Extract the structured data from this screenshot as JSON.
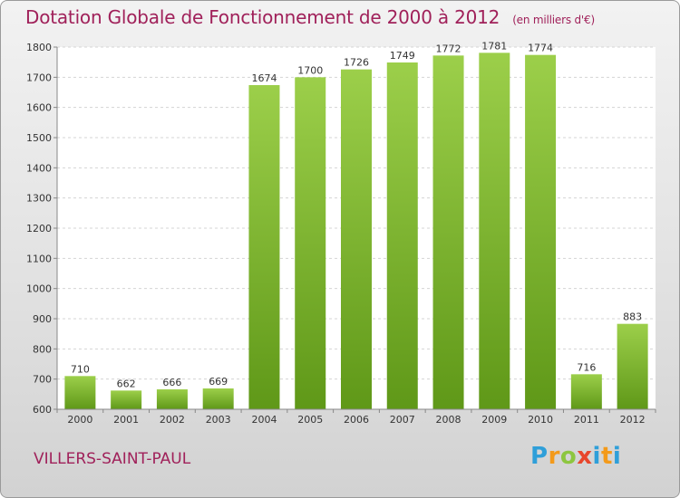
{
  "chart_data": {
    "type": "bar",
    "title": "Dotation Globale de Fonctionnement de 2000 à 2012",
    "subtitle": "(en milliers d'€)",
    "categories": [
      "2000",
      "2001",
      "2002",
      "2003",
      "2004",
      "2005",
      "2006",
      "2007",
      "2008",
      "2009",
      "2010",
      "2011",
      "2012"
    ],
    "values": [
      710,
      662,
      666,
      669,
      1674,
      1700,
      1726,
      1749,
      1772,
      1781,
      1774,
      716,
      883
    ],
    "ylim": [
      600,
      1800
    ],
    "yticks": [
      600,
      700,
      800,
      900,
      1000,
      1100,
      1200,
      1300,
      1400,
      1500,
      1600,
      1700,
      1800
    ],
    "grid": true,
    "bar_color": "#8cc63f"
  },
  "footer": {
    "place": "VILLERS-SAINT-PAUL",
    "logo": [
      "P",
      "r",
      "o",
      "x",
      "i",
      "t",
      "i"
    ]
  }
}
